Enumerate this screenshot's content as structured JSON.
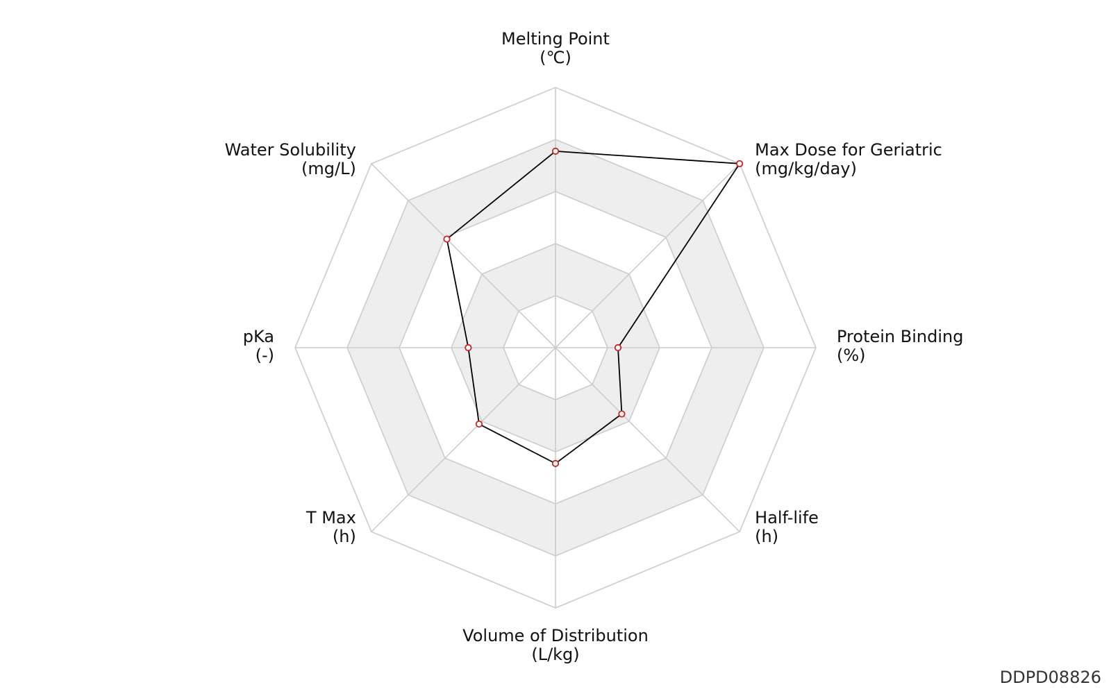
{
  "chart_data": {
    "type": "radar",
    "axes": [
      {
        "name": "Melting Point",
        "unit": "(℃)"
      },
      {
        "name": "Max Dose for Geriatric",
        "unit": "(mg/kg/day)"
      },
      {
        "name": "Protein Binding",
        "unit": "(%)"
      },
      {
        "name": "Half-life",
        "unit": "(h)"
      },
      {
        "name": "Volume of Distribution",
        "unit": "(L/kg)"
      },
      {
        "name": "T Max",
        "unit": "(h)"
      },
      {
        "name": "pKa",
        "unit": "(-)"
      },
      {
        "name": "Water Solubility",
        "unit": "(mg/L)"
      }
    ],
    "levels": 5,
    "range": [
      0,
      1
    ],
    "band_fill": "#eeeeee",
    "grid_color": "#cccccc",
    "line_color": "#000000",
    "marker_color": "#cc2222",
    "series": [
      {
        "values": [
          0.755,
          1.0,
          0.24,
          0.36,
          0.445,
          0.415,
          0.335,
          0.59
        ]
      }
    ]
  },
  "watermark": "DDPD08826"
}
